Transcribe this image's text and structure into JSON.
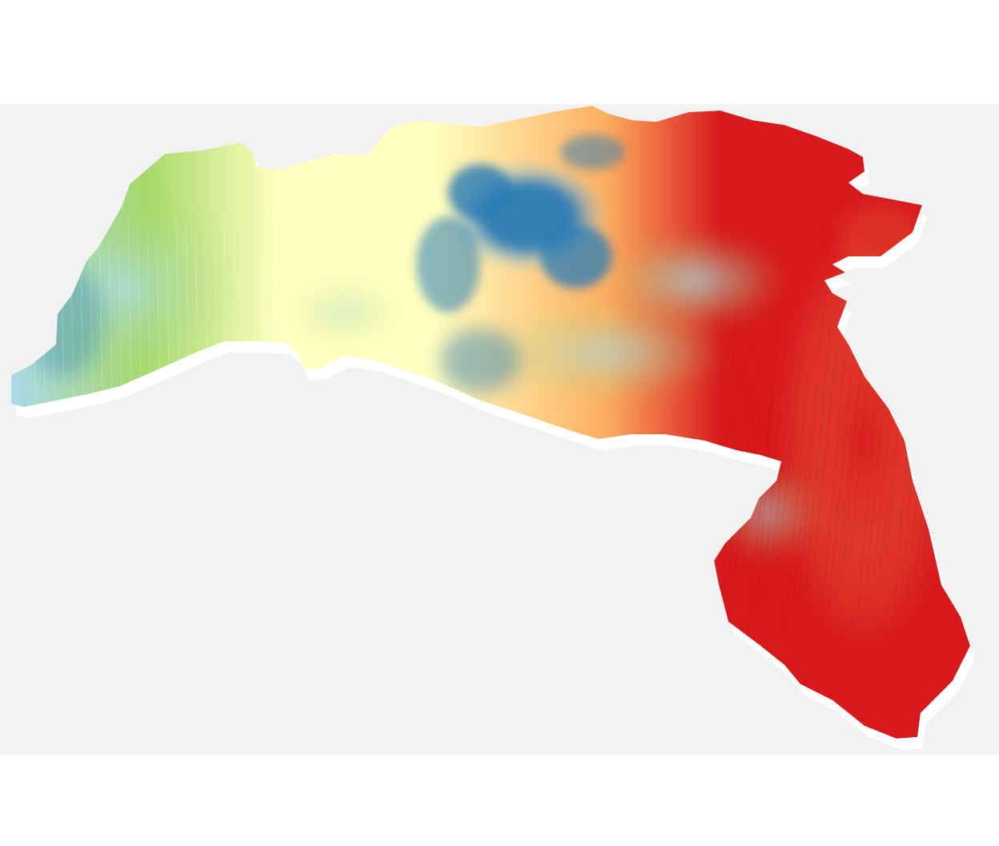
{
  "map": {
    "colors": {
      "page_background": "#ffffff",
      "canvas_background": "#f2f2f2",
      "relief_highest": "#2c7bb6",
      "relief_high": "#abd9e9",
      "relief_mid_high": "#a6d96a",
      "relief_mid": "#ffffbf",
      "relief_mid_low": "#fdae61",
      "relief_low": "#d7191c",
      "shadow": "#ffffff"
    },
    "icons": []
  }
}
